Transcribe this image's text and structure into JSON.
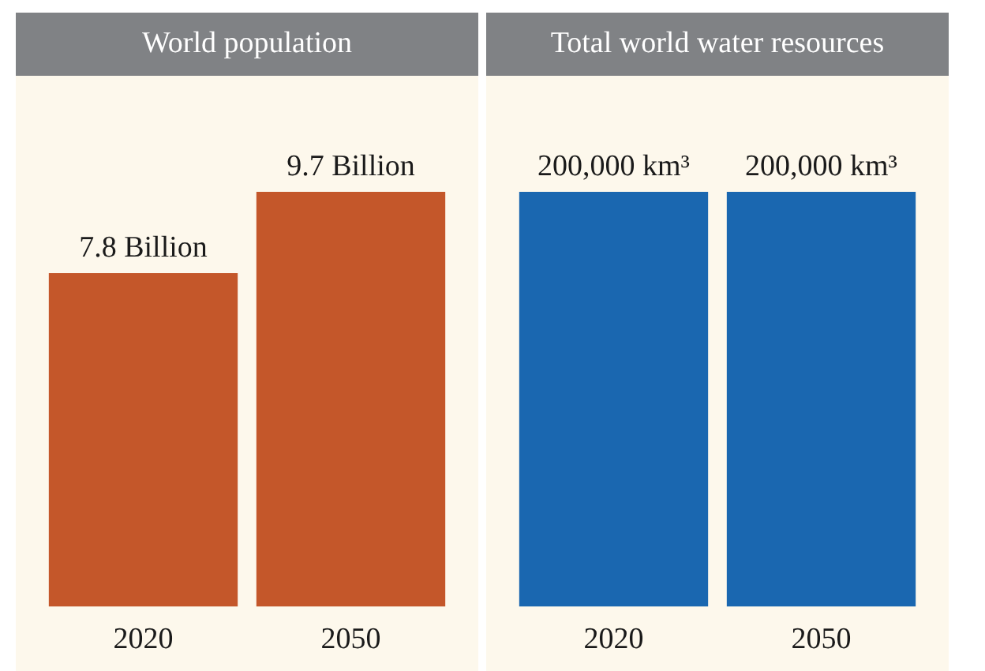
{
  "chart_data": [
    {
      "type": "bar",
      "title": "World population",
      "categories": [
        "2020",
        "2050"
      ],
      "values": [
        7.8,
        9.7
      ],
      "color": "#c4572a",
      "value_labels": [
        "7.8 Billion",
        "9.7 Billion"
      ]
    },
    {
      "type": "bar",
      "title": "Total world water resources",
      "categories": [
        "2020",
        "2050"
      ],
      "values": [
        200000,
        200000
      ],
      "color": "#1a67b0",
      "value_labels": [
        "200,000 km³",
        "200,000 km³"
      ]
    }
  ]
}
